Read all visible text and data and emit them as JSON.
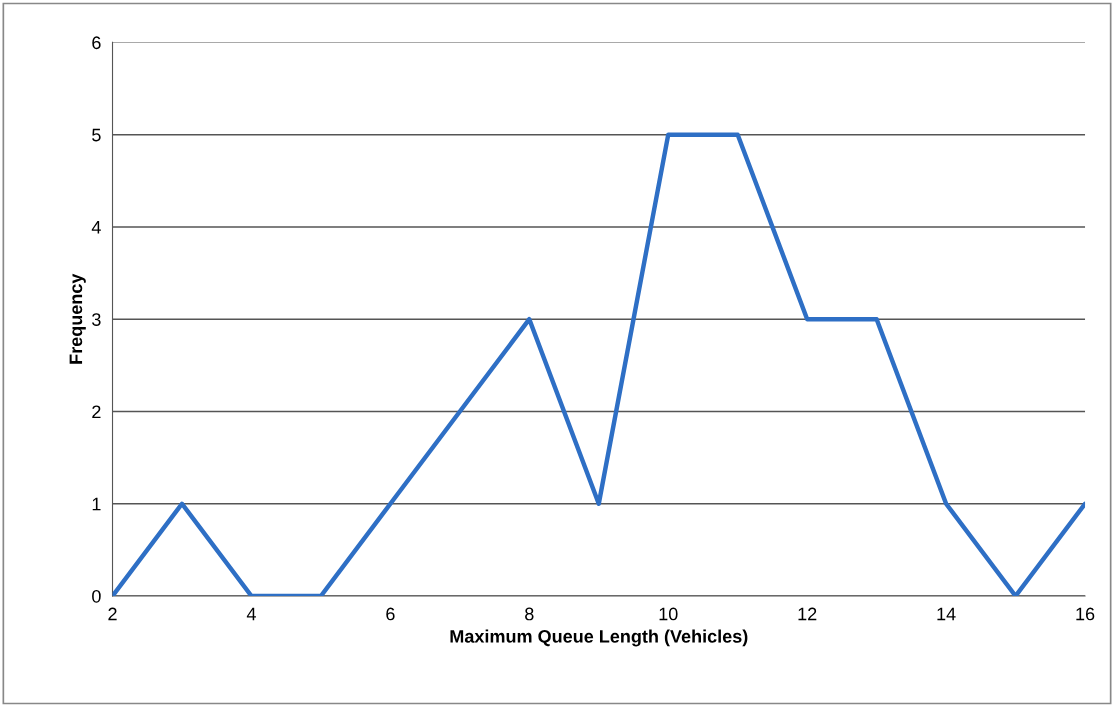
{
  "chart_data": {
    "type": "line",
    "xlabel": "Maximum Queue Length (Vehicles)",
    "ylabel": "Frequency",
    "x": [
      2,
      3,
      4,
      5,
      6,
      7,
      8,
      9,
      10,
      11,
      12,
      13,
      14,
      15,
      16
    ],
    "series": [
      {
        "color": "#2e6fc5",
        "values": [
          0,
          1,
          0,
          0,
          1,
          2,
          3,
          1,
          5,
          5,
          3,
          3,
          1,
          0,
          1
        ]
      }
    ],
    "xlim": [
      2,
      16
    ],
    "xticks": [
      2,
      4,
      6,
      8,
      10,
      12,
      14,
      16
    ],
    "ylim": [
      0,
      6
    ],
    "yticks": [
      0,
      1,
      2,
      3,
      4,
      5,
      6
    ],
    "grid": "y",
    "marker": "none",
    "line_style": "solid"
  }
}
